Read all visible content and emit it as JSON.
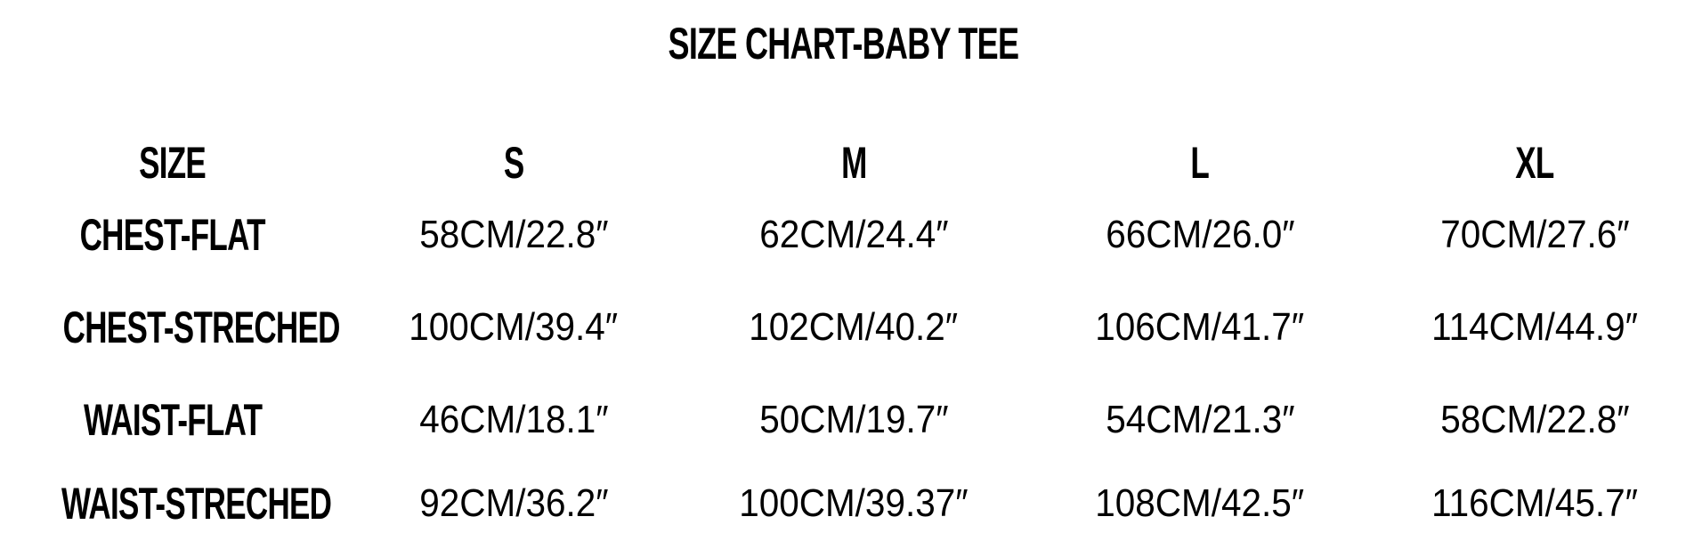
{
  "title": "SIZE CHART-BABY TEE",
  "header": [
    "SIZE",
    "S",
    "M",
    "L",
    "XL"
  ],
  "rows": [
    {
      "label": "CHEST-FLAT",
      "values": [
        "58CM/22.8″",
        "62CM/24.4″",
        "66CM/26.0″",
        "70CM/27.6″"
      ]
    },
    {
      "label": "CHEST-STRECHED",
      "values": [
        "100CM/39.4″",
        "102CM/40.2″",
        "106CM/41.7″",
        "114CM/44.9″"
      ]
    },
    {
      "label": "WAIST-FLAT",
      "values": [
        "46CM/18.1″",
        "50CM/19.7″",
        "54CM/21.3″",
        "58CM/22.8″"
      ]
    },
    {
      "label": "WAIST-STRECHED",
      "values": [
        "92CM/36.2″",
        "100CM/39.37″",
        "108CM/42.5″",
        "116CM/45.7″"
      ]
    }
  ]
}
